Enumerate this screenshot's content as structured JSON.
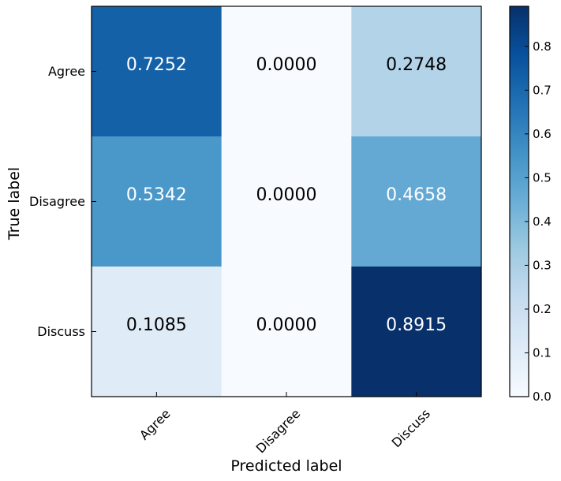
{
  "chart_data": {
    "type": "heatmap",
    "title": "",
    "xlabel": "Predicted label",
    "ylabel": "True label",
    "x_categories": [
      "Agree",
      "Disagree",
      "Discuss"
    ],
    "y_categories": [
      "Agree",
      "Disagree",
      "Discuss"
    ],
    "values": [
      [
        0.7252,
        0.0,
        0.2748
      ],
      [
        0.5342,
        0.0,
        0.4658
      ],
      [
        0.1085,
        0.0,
        0.8915
      ]
    ],
    "cell_labels": [
      [
        "0.7252",
        "0.0000",
        "0.2748"
      ],
      [
        "0.5342",
        "0.0000",
        "0.4658"
      ],
      [
        "0.1085",
        "0.0000",
        "0.8915"
      ]
    ],
    "colormap": "Blues",
    "colorbar": {
      "range": [
        0.0,
        0.8915
      ],
      "ticks": [
        0.0,
        0.1,
        0.2,
        0.3,
        0.4,
        0.5,
        0.6,
        0.7,
        0.8
      ],
      "tick_labels": [
        "0.0",
        "0.1",
        "0.2",
        "0.3",
        "0.4",
        "0.5",
        "0.6",
        "0.7",
        "0.8"
      ]
    },
    "text_color_light": "#ffffff",
    "text_color_dark": "#000000"
  }
}
